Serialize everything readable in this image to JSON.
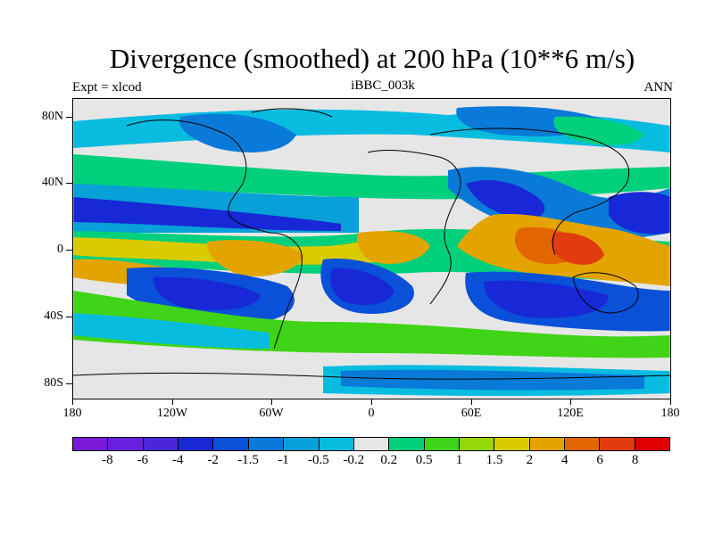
{
  "title": "Divergence (smoothed) at 200 hPa (10**6 m/s)",
  "expt_label": "Expt = xlcod",
  "case_label": "iBBC_003k",
  "season_label": "ANN",
  "y_axis_labels": [
    "80N",
    "40N",
    "0",
    "40S",
    "80S"
  ],
  "x_axis_labels": [
    "180",
    "120W",
    "60W",
    "0",
    "60E",
    "120E",
    "180"
  ],
  "colorbar": {
    "colors": [
      "#7b18d6",
      "#6a1ee0",
      "#4a26d8",
      "#1828d6",
      "#0a50d8",
      "#0a7ad8",
      "#08a0d8",
      "#08bce0",
      "#e6e6e6",
      "#00d07c",
      "#40d418",
      "#98d60c",
      "#d8cc00",
      "#e4a400",
      "#e26600",
      "#e03c10",
      "#e00000"
    ],
    "labels": [
      "-8",
      "-6",
      "-4",
      "-2",
      "-1.5",
      "-1",
      "-0.5",
      "-0.2",
      "0.2",
      "0.5",
      "1",
      "1.5",
      "2",
      "4",
      "6",
      "8"
    ]
  }
}
